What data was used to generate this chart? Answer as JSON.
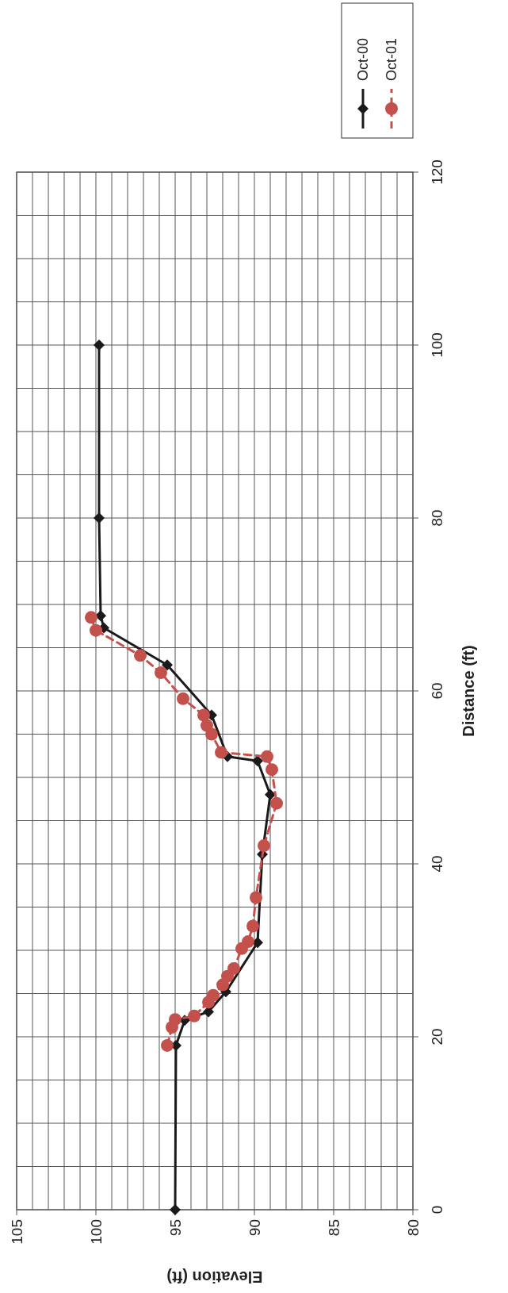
{
  "chart_data": {
    "type": "line",
    "xlabel": "Elevation (ft)",
    "ylabel": "Distance (ft)",
    "xlim": [
      105,
      80
    ],
    "xticks": [
      105,
      100,
      95,
      90,
      85,
      80
    ],
    "ylim": [
      0,
      120
    ],
    "yticks": [
      0,
      20,
      40,
      60,
      80,
      100,
      120
    ],
    "grid": true,
    "legend": "top right",
    "series": [
      {
        "name": "Oct-00",
        "color": "#1a1a1a",
        "marker": "diamond",
        "line_style": "solid",
        "x": [
          95,
          94.95,
          94.4,
          92.9,
          91.8,
          89.8,
          89.5,
          89,
          89.8,
          91.7,
          92.7,
          95.5,
          99.5,
          99.7,
          99.8,
          99.8
        ],
        "values": [
          0,
          19,
          21.9,
          22.9,
          25.2,
          30.9,
          41.1,
          48,
          51.9,
          52.4,
          57.2,
          63,
          67.3,
          68.7,
          80,
          100
        ]
      },
      {
        "name": "Oct-01",
        "color": "#c4504c",
        "marker": "circle",
        "line_style": "dashed",
        "x": [
          95.5,
          95.2,
          95,
          93.8,
          92.9,
          92.6,
          92,
          91.7,
          91.3,
          90.8,
          90.4,
          90.1,
          89.9,
          89.4,
          88.6,
          88.9,
          89.2,
          92.1,
          92.7,
          93,
          93.2,
          94.5,
          95.9,
          97.2,
          100,
          100.3
        ],
        "values": [
          19,
          21.1,
          22,
          22.4,
          24,
          24.8,
          26,
          27,
          27.9,
          30.2,
          31,
          32.8,
          36.1,
          42.1,
          47,
          50.9,
          52.4,
          52.9,
          55,
          56,
          57.2,
          59.1,
          62.1,
          64.1,
          67,
          68.5
        ]
      }
    ]
  }
}
